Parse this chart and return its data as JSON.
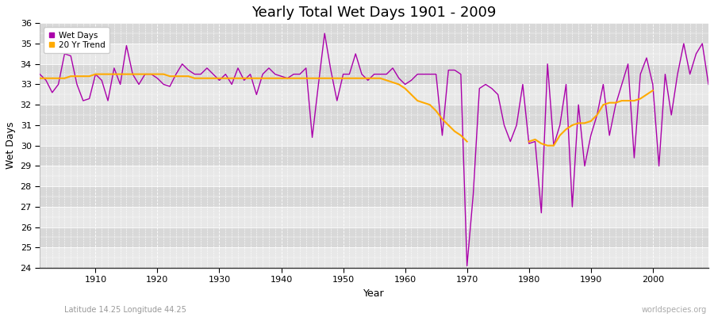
{
  "title": "Yearly Total Wet Days 1901 - 2009",
  "xlabel": "Year",
  "ylabel": "Wet Days",
  "bottom_left_label": "Latitude 14.25 Longitude 44.25",
  "bottom_right_label": "worldspecies.org",
  "xlim": [
    1901,
    2009
  ],
  "ylim": [
    24,
    36
  ],
  "yticks": [
    24,
    25,
    26,
    27,
    28,
    29,
    30,
    31,
    32,
    33,
    34,
    35,
    36
  ],
  "xticks": [
    1910,
    1920,
    1930,
    1940,
    1950,
    1960,
    1970,
    1980,
    1990,
    2000
  ],
  "wet_days_color": "#aa00aa",
  "trend_color": "#ffaa00",
  "bg_light": "#f0f0f0",
  "bg_dark": "#e0e0e0",
  "legend_wet_days": "Wet Days",
  "legend_trend": "20 Yr Trend",
  "years": [
    1901,
    1902,
    1903,
    1904,
    1905,
    1906,
    1907,
    1908,
    1909,
    1910,
    1911,
    1912,
    1913,
    1914,
    1915,
    1916,
    1917,
    1918,
    1919,
    1920,
    1921,
    1922,
    1923,
    1924,
    1925,
    1926,
    1927,
    1928,
    1929,
    1930,
    1931,
    1932,
    1933,
    1934,
    1935,
    1936,
    1937,
    1938,
    1939,
    1940,
    1941,
    1942,
    1943,
    1944,
    1945,
    1946,
    1947,
    1948,
    1949,
    1950,
    1951,
    1952,
    1953,
    1954,
    1955,
    1956,
    1957,
    1958,
    1959,
    1960,
    1961,
    1962,
    1963,
    1964,
    1965,
    1966,
    1967,
    1968,
    1969,
    1970,
    1971,
    1972,
    1973,
    1974,
    1975,
    1976,
    1977,
    1978,
    1979,
    1980,
    1981,
    1982,
    1983,
    1984,
    1985,
    1986,
    1987,
    1988,
    1989,
    1990,
    1991,
    1992,
    1993,
    1994,
    1995,
    1996,
    1997,
    1998,
    1999,
    2000,
    2001,
    2002,
    2003,
    2004,
    2005,
    2006,
    2007,
    2008,
    2009
  ],
  "wet_days": [
    33.5,
    33.2,
    32.6,
    33.0,
    34.5,
    34.4,
    33.0,
    32.2,
    32.3,
    33.5,
    33.2,
    32.2,
    33.8,
    33.0,
    34.9,
    33.5,
    33.0,
    33.5,
    33.5,
    33.3,
    33.0,
    32.9,
    33.5,
    34.0,
    33.7,
    33.5,
    33.5,
    33.8,
    33.5,
    33.2,
    33.5,
    33.0,
    33.8,
    33.2,
    33.5,
    32.5,
    33.5,
    33.8,
    33.5,
    33.4,
    33.3,
    33.5,
    33.5,
    33.8,
    30.4,
    33.0,
    35.5,
    33.7,
    32.2,
    33.5,
    33.5,
    34.5,
    33.5,
    33.2,
    33.5,
    33.5,
    33.5,
    33.8,
    33.3,
    33.0,
    33.2,
    33.5,
    33.5,
    33.5,
    33.5,
    30.5,
    33.7,
    33.7,
    33.5,
    24.1,
    27.6,
    32.8,
    33.0,
    32.8,
    32.5,
    31.0,
    30.2,
    31.0,
    33.0,
    30.1,
    30.2,
    26.7,
    34.0,
    30.0,
    31.0,
    33.0,
    27.0,
    32.0,
    29.0,
    30.5,
    31.5,
    33.0,
    30.5,
    32.0,
    33.0,
    34.0,
    29.4,
    33.5,
    34.3,
    33.0,
    29.0,
    33.5,
    31.5,
    33.5,
    35.0,
    33.5,
    34.5,
    35.0,
    33.0
  ],
  "trend": [
    33.3,
    33.3,
    33.3,
    33.3,
    33.3,
    33.4,
    33.4,
    33.4,
    33.4,
    33.5,
    33.5,
    33.5,
    33.5,
    33.5,
    33.5,
    33.5,
    33.5,
    33.5,
    33.5,
    33.5,
    33.5,
    33.4,
    33.4,
    33.4,
    33.4,
    33.3,
    33.3,
    33.3,
    33.3,
    33.3,
    33.3,
    33.3,
    33.3,
    33.3,
    33.3,
    33.3,
    33.3,
    33.3,
    33.3,
    33.3,
    33.3,
    33.3,
    33.3,
    33.3,
    33.3,
    33.3,
    33.3,
    33.3,
    33.3,
    33.3,
    33.3,
    33.3,
    33.3,
    33.3,
    33.3,
    33.3,
    33.2,
    33.1,
    33.0,
    32.8,
    32.5,
    32.2,
    32.1,
    32.0,
    31.7,
    31.3,
    31.0,
    30.7,
    30.5,
    30.2,
    null,
    null,
    null,
    null,
    null,
    null,
    null,
    null,
    null,
    30.2,
    30.3,
    30.1,
    30.0,
    30.0,
    30.5,
    30.8,
    31.0,
    31.1,
    31.1,
    31.2,
    31.5,
    32.0,
    32.1,
    32.1,
    32.2,
    32.2,
    32.2,
    32.3,
    32.5,
    32.7,
    null,
    null,
    null,
    null,
    null,
    null,
    null,
    null,
    null
  ]
}
